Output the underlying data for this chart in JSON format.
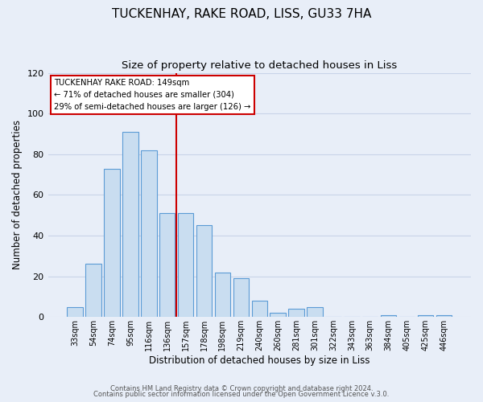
{
  "title": "TUCKENHAY, RAKE ROAD, LISS, GU33 7HA",
  "subtitle": "Size of property relative to detached houses in Liss",
  "xlabel": "Distribution of detached houses by size in Liss",
  "ylabel": "Number of detached properties",
  "bar_labels": [
    "33sqm",
    "54sqm",
    "74sqm",
    "95sqm",
    "116sqm",
    "136sqm",
    "157sqm",
    "178sqm",
    "198sqm",
    "219sqm",
    "240sqm",
    "260sqm",
    "281sqm",
    "301sqm",
    "322sqm",
    "343sqm",
    "363sqm",
    "384sqm",
    "405sqm",
    "425sqm",
    "446sqm"
  ],
  "bar_values": [
    5,
    26,
    73,
    91,
    82,
    51,
    51,
    45,
    22,
    19,
    8,
    2,
    4,
    5,
    0,
    0,
    0,
    1,
    0,
    1,
    1
  ],
  "bar_color": "#c9ddf0",
  "bar_edge_color": "#5b9bd5",
  "vline_color": "#cc0000",
  "ylim": [
    0,
    120
  ],
  "yticks": [
    0,
    20,
    40,
    60,
    80,
    100,
    120
  ],
  "annotation_title": "TUCKENHAY RAKE ROAD: 149sqm",
  "annotation_line1": "← 71% of detached houses are smaller (304)",
  "annotation_line2": "29% of semi-detached houses are larger (126) →",
  "annotation_box_facecolor": "#ffffff",
  "annotation_box_edgecolor": "#cc0000",
  "footer1": "Contains HM Land Registry data © Crown copyright and database right 2024.",
  "footer2": "Contains public sector information licensed under the Open Government Licence v.3.0.",
  "background_color": "#e8eef8",
  "plot_bg_color": "#e8eef8",
  "grid_color": "#c8d4e8",
  "title_fontsize": 11,
  "subtitle_fontsize": 9.5
}
